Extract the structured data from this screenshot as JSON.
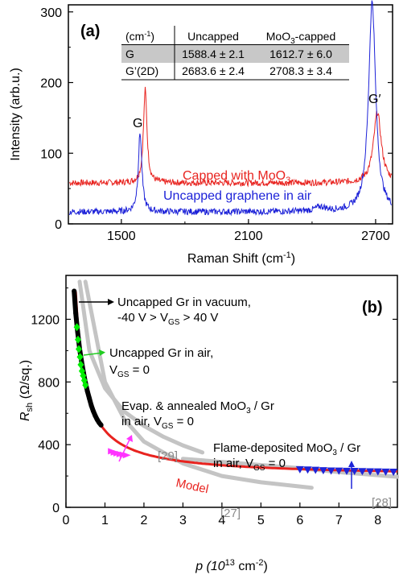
{
  "chart_data": [
    {
      "panel_label": "(a)",
      "type": "line",
      "xlabel": "Raman Shift (cm",
      "xlabel_sup": "-1",
      "xlabel_end": ")",
      "ylabel": "Intensity (arb.u.)",
      "xlim": [
        1250,
        2780
      ],
      "ylim": [
        0,
        310
      ],
      "xticks": [
        "1500",
        "2100",
        "2700"
      ],
      "xtick_values": [
        1500,
        2100,
        2700
      ],
      "yticks": [
        "0",
        "100",
        "200",
        "300"
      ],
      "ytick_values": [
        0,
        100,
        200,
        300
      ],
      "peak_labels": {
        "g": "G",
        "g_prime": "G′"
      },
      "table": {
        "headers": [
          "(cm-1)",
          "Uncapped",
          "MoO3-capped"
        ],
        "rows": [
          {
            "label": "G",
            "uncapped": "1588.4 ± 2.1",
            "capped": "1612.7 ± 6.0"
          },
          {
            "label": "G’(2D)",
            "uncapped": "2683.6 ± 2.4",
            "capped": "2708.3 ± 3.4"
          }
        ]
      },
      "series": [
        {
          "name": "Capped with MoO3",
          "color": "#e8231f",
          "baseline": 58,
          "peaks": [
            {
              "center": 1612.7,
              "height": 132,
              "width": 10
            },
            {
              "center": 2708.3,
              "height": 100,
              "width": 22
            }
          ]
        },
        {
          "name": "Uncapped graphene in air",
          "color": "#1d22d8",
          "baseline": 17,
          "peaks": [
            {
              "center": 1588.4,
              "height": 112,
              "width": 10
            },
            {
              "center": 2683.6,
              "height": 298,
              "width": 20
            },
            {
              "center": 2440,
              "height": 6,
              "width": 30
            }
          ]
        }
      ],
      "legend_text": {
        "capped": "Capped with MoO",
        "capped_sub": "3",
        "uncapped": "Uncapped graphene in air"
      }
    },
    {
      "panel_label": "(b)",
      "type": "scatter",
      "xlabel": "p (10",
      "xlabel_sup": "13",
      "xlabel_unit": " cm",
      "xlabel_sup2": "-2",
      "xlabel_end": ")",
      "ylabel": "R",
      "ylabel_sub": "sh",
      "ylabel_unit": " (Ω/sq.)",
      "xlim": [
        0,
        8.5
      ],
      "ylim": [
        0,
        1480
      ],
      "xticks": [
        "0",
        "1",
        "2",
        "3",
        "4",
        "5",
        "6",
        "7",
        "8"
      ],
      "xtick_values": [
        0,
        1,
        2,
        3,
        4,
        5,
        6,
        7,
        8
      ],
      "yticks": [
        "0",
        "400",
        "800",
        "1200"
      ],
      "ytick_values": [
        0,
        400,
        800,
        1200
      ],
      "model_label": "Model",
      "series": [
        {
          "name": "Uncapped Gr in vacuum, -40 V > VGS > 40 V",
          "color": "#000000",
          "x": [
            0.21,
            0.25,
            0.3,
            0.35,
            0.4,
            0.45,
            0.5,
            0.55,
            0.6,
            0.65,
            0.7,
            0.75,
            0.8,
            0.85,
            0.9
          ],
          "y": [
            1380,
            1240,
            1120,
            1010,
            930,
            860,
            795,
            740,
            695,
            650,
            615,
            585,
            560,
            540,
            525
          ]
        },
        {
          "name": "Uncapped Gr in air, VGS = 0",
          "color": "#00ee00",
          "x": [
            0.28,
            0.31,
            0.33,
            0.36,
            0.38,
            0.41,
            0.44,
            0.47,
            0.5
          ],
          "y": [
            1150,
            1070,
            1010,
            960,
            910,
            870,
            840,
            810,
            780
          ]
        },
        {
          "name": "Evap. & annealed MoO3 / Gr in air, VGS = 0",
          "color": "#ff33ff",
          "x": [
            1.18,
            1.25,
            1.32,
            1.4,
            1.48,
            1.56
          ],
          "y": [
            358,
            350,
            345,
            340,
            336,
            333
          ]
        },
        {
          "name": "Flame-deposited MoO3 / Gr in air, VGS = 0",
          "color": "#1e24d8",
          "x": [
            6.0,
            6.2,
            6.4,
            6.6,
            6.8,
            7.0,
            7.2,
            7.4,
            7.6,
            7.8,
            8.0,
            8.2,
            8.4
          ],
          "y": [
            242,
            240,
            238,
            236,
            234,
            233,
            232,
            231,
            230,
            229,
            228,
            227,
            226
          ]
        }
      ],
      "model": {
        "color": "#e8231f",
        "k": 295,
        "c": 195
      },
      "reference_curves": [
        {
          "label": "[29]",
          "x": [
            0.35,
            0.6,
            1.0,
            1.5,
            2.0,
            2.5,
            3.0,
            3.5
          ],
          "y": [
            1440,
            1000,
            760,
            610,
            520,
            450,
            395,
            350
          ]
        },
        {
          "label": "[27]",
          "x": [
            0.5,
            1.0,
            1.5,
            2.0,
            3.0,
            4.0,
            5.0,
            6.3
          ],
          "y": [
            1440,
            800,
            560,
            420,
            280,
            200,
            160,
            125
          ]
        },
        {
          "label": "[28]",
          "x": [
            3.0,
            4.0,
            5.0,
            6.0,
            7.0,
            8.0,
            8.5
          ],
          "y": [
            310,
            290,
            270,
            250,
            225,
            205,
            195
          ]
        }
      ],
      "annotations": {
        "vacuum_line1": "Uncapped Gr in vacuum,",
        "vacuum_line2": "-40 V > V",
        "vacuum_sub": "GS",
        "vacuum_end": " > 40 V",
        "air_line1": "Uncapped Gr in air,",
        "air_line2": "V",
        "air_sub": "GS",
        "air_end": " = 0",
        "evap_line1": "Evap. & annealed MoO",
        "evap_sub": "3",
        "evap_end": " / Gr",
        "evap_line2": "in air, V",
        "evap_sub2": "GS",
        "evap_end2": " = 0",
        "flame_line1": "Flame-deposited MoO",
        "flame_sub": "3",
        "flame_end": " / Gr",
        "flame_line2": "in air, V",
        "flame_sub2": "GS",
        "flame_end2": " = 0"
      }
    }
  ]
}
